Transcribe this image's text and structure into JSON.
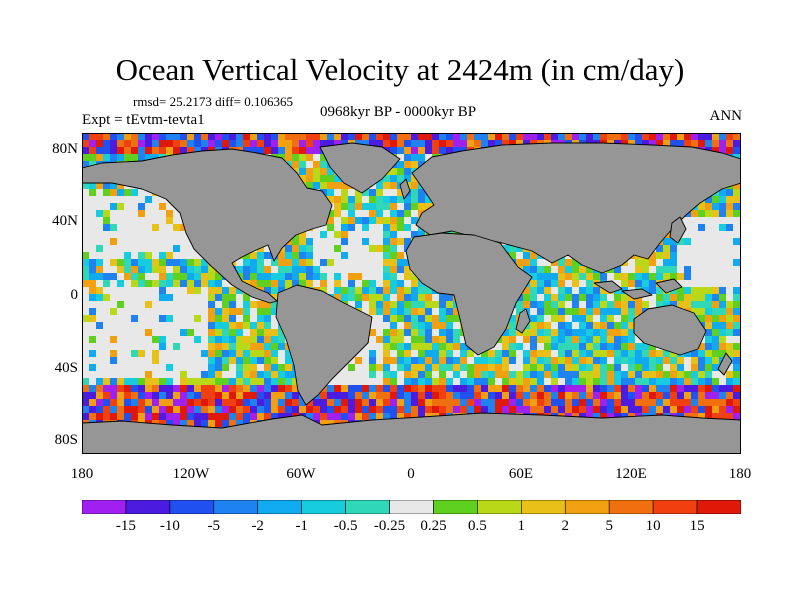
{
  "title": "Ocean Vertical Velocity at 2424m (in cm/day)",
  "stats": "rmsd= 25.2173 diff= 0.106365",
  "experiment": "Expt = tEvtm-tevta1",
  "period": "0968kyr BP - 0000kyr BP",
  "season": "ANN",
  "lat_labels": [
    "80N",
    "40N",
    "0",
    "40S",
    "80S"
  ],
  "lon_labels": [
    "180",
    "120W",
    "60W",
    "0",
    "60E",
    "120E",
    "180"
  ],
  "colorbar": {
    "labels": [
      "-15",
      "-10",
      "-5",
      "-2",
      "-1",
      "-0.5",
      "-0.25",
      "0.25",
      "0.5",
      "1",
      "2",
      "5",
      "10",
      "15"
    ],
    "colors": [
      "#a020f0",
      "#4b1ce0",
      "#2050f0",
      "#1e82f0",
      "#10aaf0",
      "#18cce0",
      "#30d8b8",
      "#e8e8e8",
      "#60d020",
      "#b8d818",
      "#e8c018",
      "#f0a010",
      "#f07010",
      "#f04010",
      "#e01808"
    ]
  },
  "colors": {
    "land": "#969696",
    "neutral": "#e8e8e8"
  }
}
